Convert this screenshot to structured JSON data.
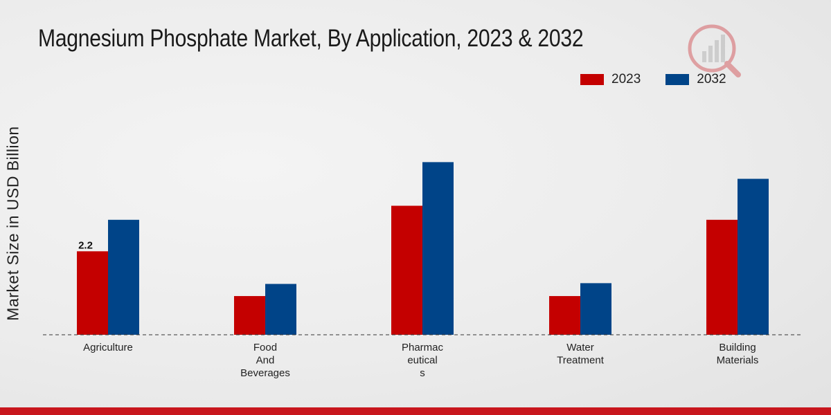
{
  "title": "Magnesium Phosphate Market, By Application, 2023 & 2032",
  "legend": [
    {
      "label": "2023",
      "color": "#c40000"
    },
    {
      "label": "2032",
      "color": "#004488"
    }
  ],
  "chart_data": {
    "type": "bar",
    "title": "Magnesium Phosphate Market, By Application, 2023 & 2032",
    "xlabel": "",
    "ylabel": "Market Size in USD Billion",
    "categories": [
      [
        "Agriculture"
      ],
      [
        "Food",
        "And",
        "Beverages"
      ],
      [
        "Pharmac",
        "eutical",
        "s"
      ],
      [
        "Water",
        "Treatment"
      ],
      [
        "Building",
        "Materials"
      ]
    ],
    "series": [
      {
        "name": "2023",
        "color": "#c40000",
        "values": [
          2.2,
          1.02,
          3.4,
          1.02,
          3.03
        ]
      },
      {
        "name": "2032",
        "color": "#004488",
        "values": [
          3.03,
          1.34,
          4.55,
          1.36,
          4.11
        ]
      }
    ],
    "data_labels": [
      {
        "series": 0,
        "index": 0,
        "text": "2.2"
      }
    ],
    "ylim": [
      0,
      7
    ],
    "grid": false,
    "legend_position": "top-right"
  }
}
